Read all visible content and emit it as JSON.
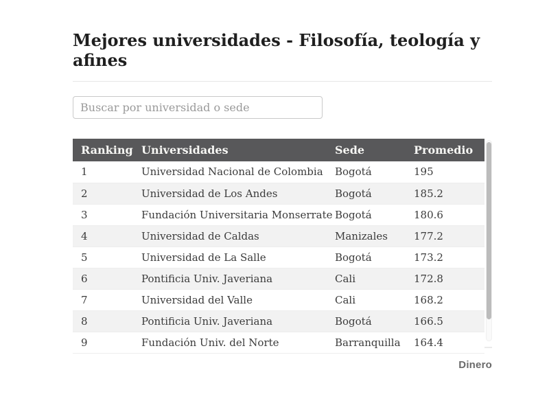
{
  "page": {
    "title": "Mejores universidades - Filosofía, teología y afines",
    "brand": "Dinero"
  },
  "search": {
    "placeholder": "Buscar por universidad o sede",
    "value": ""
  },
  "table": {
    "columns": [
      "Ranking",
      "Universidades",
      "Sede",
      "Promedio"
    ],
    "rows": [
      [
        "1",
        "Universidad Nacional de Colombia",
        "Bogotá",
        "195"
      ],
      [
        "2",
        "Universidad de Los Andes",
        "Bogotá",
        "185.2"
      ],
      [
        "3",
        "Fundación Universitaria Monserrate",
        "Bogotá",
        "180.6"
      ],
      [
        "4",
        "Universidad de Caldas",
        "Manizales",
        "177.2"
      ],
      [
        "5",
        "Universidad de La Salle",
        "Bogotá",
        "173.2"
      ],
      [
        "6",
        "Pontificia Univ. Javeriana",
        "Cali",
        "172.8"
      ],
      [
        "7",
        "Universidad del Valle",
        "Cali",
        "168.2"
      ],
      [
        "8",
        "Pontificia Univ. Javeriana",
        "Bogotá",
        "166.5"
      ],
      [
        "9",
        "Fundación Univ. del Norte",
        "Barranquilla",
        "164.4"
      ]
    ]
  },
  "colors": {
    "header_bg": "#58585a",
    "header_text": "#f7f7f4",
    "row_stripe": "#f2f2f2",
    "cell_text": "#3b3b3b",
    "title_text": "#1f1f1f",
    "placeholder_text": "#9a9a9a",
    "divider": "#e7e7e7",
    "scrollbar_thumb": "#bcbcbc",
    "brand_text": "#6a6a6a"
  }
}
